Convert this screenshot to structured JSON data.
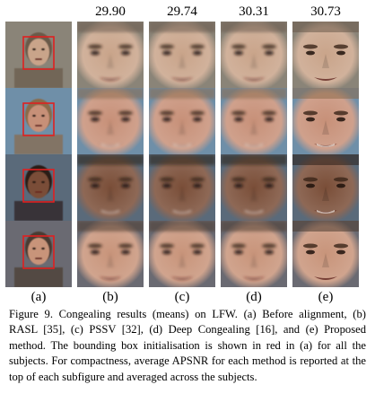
{
  "figure": {
    "scores": [
      "29.90",
      "29.74",
      "30.31",
      "30.73"
    ],
    "column_labels": [
      "(a)",
      "(b)",
      "(c)",
      "(d)",
      "(e)"
    ],
    "caption": "Figure 9. Congealing results (means) on LFW. (a) Before alignment, (b) RASL [35], (c) PSSV [32], (d) Deep Congealing [16], and (e) Proposed method. The bounding box initialisation is shown in red in (a) for all the subjects. For compactness, average APSNR for each method is reported at the top of each subfigure and averaged across the subjects.",
    "bounding_box_color": "#e02020",
    "rows": [
      {
        "subject": "subject-1",
        "skin": "#c9a48a",
        "hair": "#6a5a4a",
        "bg": "#8a8478"
      },
      {
        "subject": "subject-2",
        "skin": "#c79078",
        "hair": "#8a6a4a",
        "bg": "#6f8fa8"
      },
      {
        "subject": "subject-3",
        "skin": "#7a4e38",
        "hair": "#2a1e18",
        "bg": "#5a6a7a"
      },
      {
        "subject": "subject-4",
        "skin": "#c8947a",
        "hair": "#4a3a30",
        "bg": "#6a6a72"
      }
    ]
  }
}
